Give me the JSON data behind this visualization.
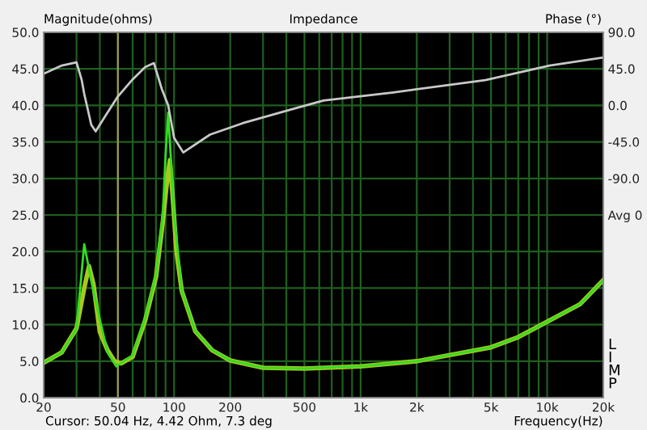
{
  "chart_data": {
    "type": "line",
    "title": "Impedance",
    "ylabel": "Magnitude(ohms)",
    "y2label": "Phase (°)",
    "xlabel": "Frequency(Hz)",
    "annotations": [
      "Cursor: 50.04 Hz, 4.42 Ohm, 7.3 deg",
      "LIMP"
    ],
    "log": "x",
    "grid": true,
    "legend": false,
    "xlim": [
      20,
      20000
    ],
    "xticks": [
      20,
      {
        "value": 30,
        "label": null
      },
      {
        "value": 40,
        "label": null
      },
      50,
      {
        "value": 60,
        "label": null
      },
      {
        "value": 70,
        "label": null
      },
      {
        "value": 80,
        "label": null
      },
      {
        "value": 90,
        "label": null
      },
      100,
      200,
      {
        "value": 300,
        "label": null
      },
      {
        "value": 400,
        "label": null
      },
      500,
      {
        "value": 600,
        "label": null
      },
      {
        "value": 700,
        "label": null
      },
      {
        "value": 800,
        "label": null
      },
      {
        "value": 900,
        "label": null
      },
      {
        "value": 1000,
        "label": "1k"
      },
      {
        "value": 2000,
        "label": "2k"
      },
      {
        "value": 3000,
        "label": null
      },
      {
        "value": 4000,
        "label": null
      },
      {
        "value": 5000,
        "label": "5k"
      },
      {
        "value": 6000,
        "label": null
      },
      {
        "value": 7000,
        "label": null
      },
      {
        "value": 8000,
        "label": null
      },
      {
        "value": 9000,
        "label": null
      },
      {
        "value": 10000,
        "label": "10k"
      },
      {
        "value": 20000,
        "label": "20k"
      }
    ],
    "ylim": [
      0,
      50
    ],
    "yticks": [
      {
        "value": 0,
        "label": "0.0"
      },
      {
        "value": 5,
        "label": "5.0"
      },
      {
        "value": 10,
        "label": "10.0"
      },
      {
        "value": 15,
        "label": "15.0"
      },
      {
        "value": 20,
        "label": "20.0"
      },
      {
        "value": 25,
        "label": "25.0"
      },
      {
        "value": 30,
        "label": "30.0"
      },
      {
        "value": 35,
        "label": "35.0"
      },
      {
        "value": 40,
        "label": "40.0"
      },
      {
        "value": 45,
        "label": "45.0"
      },
      {
        "value": 50,
        "label": "50.0"
      }
    ],
    "y2lim": [
      -360,
      90
    ],
    "y2ticks": [
      {
        "value": 90,
        "label": "90.0"
      },
      {
        "value": 45,
        "label": "45.0"
      },
      {
        "value": 0,
        "label": "0.0"
      },
      {
        "value": -45,
        "label": "-45.0"
      },
      {
        "value": -90,
        "label": "-90.0"
      },
      {
        "value": -135,
        "label": "Avg 0"
      }
    ],
    "ref_lines": [
      {
        "axis": "x",
        "value": 50,
        "color": "#a09a50"
      }
    ],
    "series": [
      {
        "color": "#a8c820",
        "x": [
          20,
          25,
          30,
          33,
          35,
          37,
          40,
          44,
          48,
          52,
          60,
          70,
          80,
          87,
          92,
          95,
          98,
          103,
          110,
          130,
          160,
          200,
          300,
          500,
          1000,
          2000,
          5000,
          7000,
          10000,
          15000,
          20000
        ],
        "values": [
          4.8,
          6.2,
          9.5,
          15,
          18,
          15.5,
          9,
          6.5,
          5,
          4.7,
          5.6,
          10.6,
          16.5,
          24,
          30,
          32.5,
          28,
          20,
          14.6,
          9.1,
          6.5,
          5.1,
          4.1,
          4.0,
          4.3,
          5.0,
          6.9,
          8.3,
          10.4,
          12.8,
          16.1
        ]
      },
      {
        "color": "#33dd22",
        "x": [
          20,
          25,
          30,
          33,
          36,
          38.6,
          44,
          49,
          60,
          70,
          80,
          87,
          90,
          93,
          96,
          100,
          110,
          130,
          160,
          200,
          300,
          500,
          1000,
          2000,
          5000,
          7000,
          10000,
          15000,
          20000
        ],
        "values": [
          4.8,
          6.2,
          9.5,
          21,
          16,
          12.4,
          6.2,
          4.3,
          5.8,
          10.9,
          16.8,
          25,
          33,
          39,
          33,
          25,
          14.6,
          9.1,
          6.5,
          5.1,
          4.1,
          4.0,
          4.3,
          5.0,
          6.9,
          8.3,
          10.4,
          12.8,
          16.1
        ]
      },
      {
        "color": "#c8c8c8",
        "axis": "y2",
        "x": [
          20,
          25,
          30,
          32,
          33,
          36,
          38,
          42,
          50,
          60,
          70,
          78,
          86,
          93,
          100,
          112,
          156,
          233,
          425,
          632,
          1500,
          4660,
          10300,
          20000
        ],
        "values": [
          39,
          49,
          53,
          31,
          14,
          -24,
          -32,
          -16,
          11,
          32,
          47,
          52,
          20,
          0,
          -40,
          -58,
          -36,
          -22,
          -5,
          6,
          16,
          31,
          49,
          59
        ]
      }
    ]
  }
}
